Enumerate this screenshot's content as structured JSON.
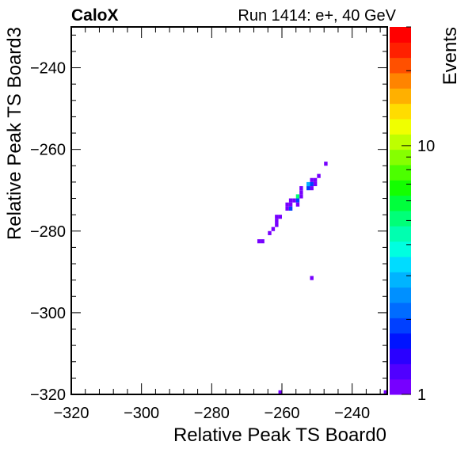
{
  "header": {
    "brand": "CaloX",
    "run_label": "Run 1414: e+, 40 GeV"
  },
  "chart_data": {
    "type": "heatmap",
    "title": "",
    "xlabel": "Relative Peak TS Board0",
    "ylabel": "Relative Peak TS Board3",
    "zlabel": "Events",
    "xlim": [
      -320,
      -230
    ],
    "ylim": [
      -320,
      -230
    ],
    "x_ticks": [
      -320,
      -300,
      -280,
      -260,
      -240
    ],
    "y_ticks": [
      -320,
      -300,
      -280,
      -260,
      -240
    ],
    "z_scale": "log",
    "zlim": [
      1,
      30
    ],
    "z_tick_labels": [
      "1",
      "10"
    ],
    "z_ticks": [
      1,
      10
    ],
    "bin_width": 1,
    "palette": [
      "#7700ff",
      "#5000ff",
      "#2a00ff",
      "#0014ff",
      "#0040ff",
      "#006cff",
      "#0090ff",
      "#00b4ff",
      "#00dcff",
      "#00ffe0",
      "#00ffb0",
      "#00ff78",
      "#00ff3c",
      "#14ff00",
      "#4cff00",
      "#86ff00",
      "#beff00",
      "#f0ff00",
      "#ffdc00",
      "#ffb000",
      "#ff8400",
      "#ff5000",
      "#ff2000",
      "#ff0000"
    ],
    "bins": [
      {
        "x": -248,
        "y": -264,
        "z": 1
      },
      {
        "x": -250,
        "y": -267,
        "z": 1
      },
      {
        "x": -251,
        "y": -268,
        "z": 1
      },
      {
        "x": -252,
        "y": -268,
        "z": 1
      },
      {
        "x": -253,
        "y": -269,
        "z": 3
      },
      {
        "x": -252,
        "y": -269,
        "z": 2
      },
      {
        "x": -251,
        "y": -269,
        "z": 1
      },
      {
        "x": -253,
        "y": -270,
        "z": 2
      },
      {
        "x": -252,
        "y": -270,
        "z": 1
      },
      {
        "x": -255,
        "y": -270,
        "z": 1
      },
      {
        "x": -255,
        "y": -271,
        "z": 1
      },
      {
        "x": -256,
        "y": -272,
        "z": 5
      },
      {
        "x": -255,
        "y": -272,
        "z": 1
      },
      {
        "x": -257,
        "y": -273,
        "z": 1
      },
      {
        "x": -256,
        "y": -273,
        "z": 2
      },
      {
        "x": -258,
        "y": -273,
        "z": 1
      },
      {
        "x": -258,
        "y": -274,
        "z": 1
      },
      {
        "x": -256,
        "y": -274,
        "z": 1
      },
      {
        "x": -259,
        "y": -274,
        "z": 1
      },
      {
        "x": -258,
        "y": -275,
        "z": 2
      },
      {
        "x": -259,
        "y": -275,
        "z": 1
      },
      {
        "x": -261,
        "y": -277,
        "z": 1
      },
      {
        "x": -262,
        "y": -277,
        "z": 1
      },
      {
        "x": -262,
        "y": -278,
        "z": 1
      },
      {
        "x": -262,
        "y": -279,
        "z": 1
      },
      {
        "x": -263,
        "y": -280,
        "z": 1
      },
      {
        "x": -264,
        "y": -281,
        "z": 1
      },
      {
        "x": -267,
        "y": -283,
        "z": 1
      },
      {
        "x": -266,
        "y": -283,
        "z": 1
      },
      {
        "x": -252,
        "y": -292,
        "z": 1
      },
      {
        "x": -261,
        "y": -320,
        "z": 1
      },
      {
        "x": -231,
        "y": -320,
        "z": 1
      }
    ]
  }
}
